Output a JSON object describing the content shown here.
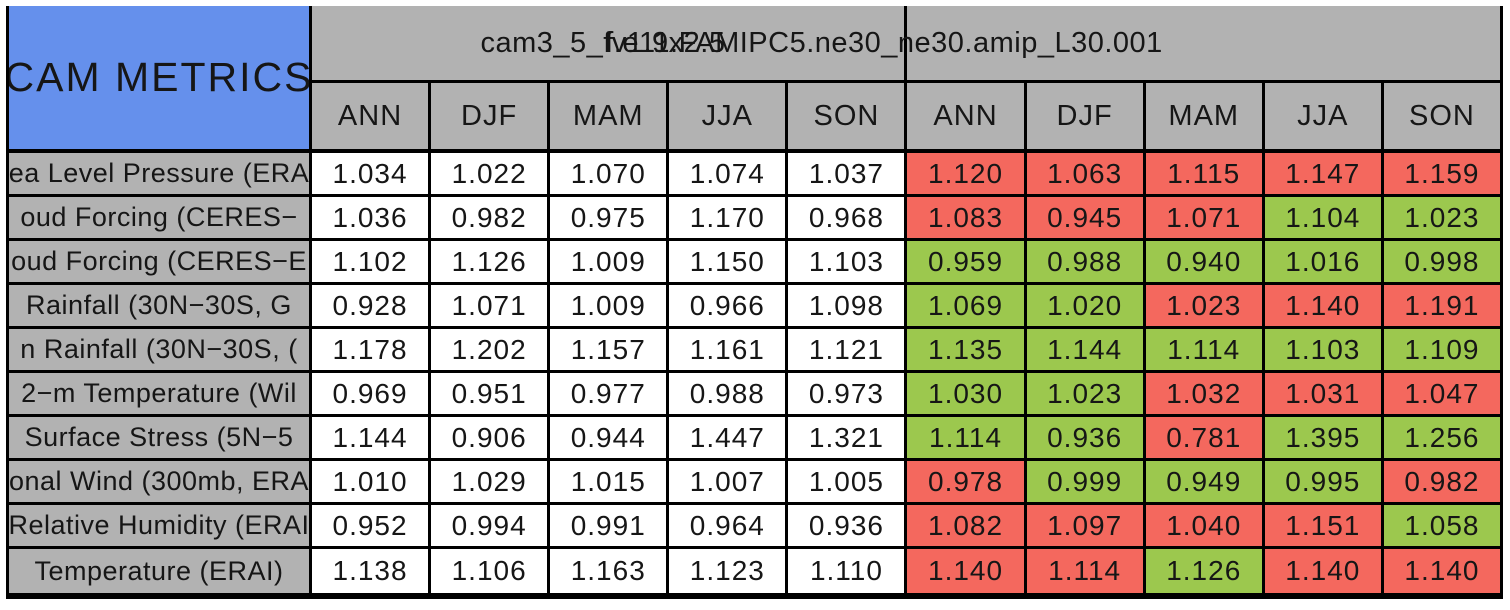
{
  "colors": {
    "page_background": "#ffffff",
    "grid_gray": "#b2b2b2",
    "title_blue": "#6590ec",
    "cell_red": "#f4685e",
    "cell_green": "#9cc84e",
    "line_black": "#000000",
    "cell_white": "#ffffff"
  },
  "chart_data": {
    "type": "table",
    "title": "CAM METRICS",
    "model_headers": [
      "cam3_5_fv1.9x2.5",
      "f.e11.FAMIPC5.ne30_ne30.amip_L30.001"
    ],
    "seasons": [
      "ANN",
      "DJF",
      "MAM",
      "JJA",
      "SON"
    ],
    "layout_hint": "left label column; two 5-season column groups, group1 cells white, group2 cells colored red/green",
    "rows": [
      {
        "label": "ea Level Pressure (ERA",
        "model1_values": [
          "1.034",
          "1.022",
          "1.070",
          "1.074",
          "1.037"
        ],
        "model2_values": [
          "1.120",
          "1.063",
          "1.115",
          "1.147",
          "1.159"
        ],
        "model2_colors": [
          "red",
          "red",
          "red",
          "red",
          "red"
        ]
      },
      {
        "label": "oud Forcing (CERES−",
        "model1_values": [
          "1.036",
          "0.982",
          "0.975",
          "1.170",
          "0.968"
        ],
        "model2_values": [
          "1.083",
          "0.945",
          "1.071",
          "1.104",
          "1.023"
        ],
        "model2_colors": [
          "red",
          "red",
          "red",
          "green",
          "green"
        ]
      },
      {
        "label": "oud Forcing (CERES−E",
        "model1_values": [
          "1.102",
          "1.126",
          "1.009",
          "1.150",
          "1.103"
        ],
        "model2_values": [
          "0.959",
          "0.988",
          "0.940",
          "1.016",
          "0.998"
        ],
        "model2_colors": [
          "green",
          "green",
          "green",
          "green",
          "green"
        ]
      },
      {
        "label": "Rainfall (30N−30S, G",
        "model1_values": [
          "0.928",
          "1.071",
          "1.009",
          "0.966",
          "1.098"
        ],
        "model2_values": [
          "1.069",
          "1.020",
          "1.023",
          "1.140",
          "1.191"
        ],
        "model2_colors": [
          "green",
          "green",
          "red",
          "red",
          "red"
        ]
      },
      {
        "label": "n Rainfall (30N−30S, (",
        "model1_values": [
          "1.178",
          "1.202",
          "1.157",
          "1.161",
          "1.121"
        ],
        "model2_values": [
          "1.135",
          "1.144",
          "1.114",
          "1.103",
          "1.109"
        ],
        "model2_colors": [
          "green",
          "green",
          "green",
          "green",
          "green"
        ]
      },
      {
        "label": "2−m Temperature (Wil",
        "model1_values": [
          "0.969",
          "0.951",
          "0.977",
          "0.988",
          "0.973"
        ],
        "model2_values": [
          "1.030",
          "1.023",
          "1.032",
          "1.031",
          "1.047"
        ],
        "model2_colors": [
          "green",
          "green",
          "red",
          "red",
          "red"
        ]
      },
      {
        "label": "Surface Stress (5N−5",
        "model1_values": [
          "1.144",
          "0.906",
          "0.944",
          "1.447",
          "1.321"
        ],
        "model2_values": [
          "1.114",
          "0.936",
          "0.781",
          "1.395",
          "1.256"
        ],
        "model2_colors": [
          "green",
          "green",
          "red",
          "green",
          "green"
        ]
      },
      {
        "label": "onal Wind (300mb, ERA",
        "model1_values": [
          "1.010",
          "1.029",
          "1.015",
          "1.007",
          "1.005"
        ],
        "model2_values": [
          "0.978",
          "0.999",
          "0.949",
          "0.995",
          "0.982"
        ],
        "model2_colors": [
          "red",
          "green",
          "green",
          "green",
          "red"
        ]
      },
      {
        "label": "Relative Humidity (ERAI",
        "model1_values": [
          "0.952",
          "0.994",
          "0.991",
          "0.964",
          "0.936"
        ],
        "model2_values": [
          "1.082",
          "1.097",
          "1.040",
          "1.151",
          "1.058"
        ],
        "model2_colors": [
          "red",
          "red",
          "red",
          "red",
          "green"
        ]
      },
      {
        "label": "Temperature (ERAI)",
        "model1_values": [
          "1.138",
          "1.106",
          "1.163",
          "1.123",
          "1.110"
        ],
        "model2_values": [
          "1.140",
          "1.114",
          "1.126",
          "1.140",
          "1.140"
        ],
        "model2_colors": [
          "red",
          "red",
          "green",
          "red",
          "red"
        ]
      }
    ]
  }
}
